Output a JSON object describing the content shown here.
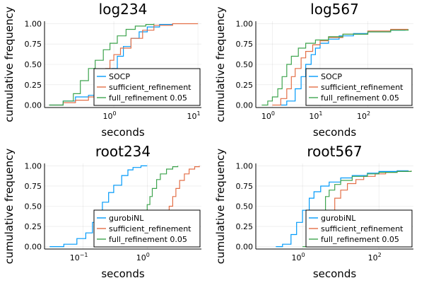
{
  "chart_data": [
    {
      "type": "line",
      "title": "log234",
      "xlabel": "seconds",
      "ylabel": "cumulative frequency",
      "xscale": "log",
      "xlim": [
        0.15,
        11
      ],
      "ylim": [
        -0.03,
        1.03
      ],
      "xticks": [
        {
          "base": "10",
          "exp": "0",
          "value": 1
        },
        {
          "base": "10",
          "exp": "1",
          "value": 10
        }
      ],
      "yticks": [
        "0.00",
        "0.25",
        "0.50",
        "0.75",
        "1.00"
      ],
      "grid": true,
      "legend_position": "bottom-right",
      "series": [
        {
          "name": "SOCP",
          "color": "#009AFA",
          "x": [
            0.17,
            0.25,
            0.35,
            0.5,
            0.65,
            0.8,
            0.95,
            1.1,
            1.3,
            1.6,
            2.0,
            2.5,
            3.5,
            5.0
          ],
          "y": [
            0.0,
            0.05,
            0.1,
            0.12,
            0.17,
            0.3,
            0.45,
            0.6,
            0.72,
            0.82,
            0.9,
            0.96,
            0.99,
            1.0
          ]
        },
        {
          "name": "sufficient_refinement",
          "color": "#E36F47",
          "x": [
            0.17,
            0.25,
            0.35,
            0.5,
            0.6,
            0.7,
            0.8,
            0.9,
            1.0,
            1.2,
            1.6,
            2.2,
            3.0,
            5.0,
            10.0
          ],
          "y": [
            0.0,
            0.03,
            0.06,
            0.1,
            0.2,
            0.35,
            0.45,
            0.55,
            0.62,
            0.7,
            0.82,
            0.92,
            0.98,
            1.0,
            1.0
          ]
        },
        {
          "name": "full_refinement 0.05",
          "color": "#3EA44E",
          "x": [
            0.17,
            0.25,
            0.33,
            0.4,
            0.5,
            0.6,
            0.75,
            0.9,
            1.1,
            1.4,
            1.8,
            2.4,
            3.0
          ],
          "y": [
            0.0,
            0.05,
            0.14,
            0.3,
            0.45,
            0.55,
            0.68,
            0.76,
            0.85,
            0.93,
            0.97,
            0.99,
            1.0
          ]
        }
      ]
    },
    {
      "type": "line",
      "title": "log567",
      "xlabel": "seconds",
      "ylabel": "cumulative frequency",
      "xscale": "log",
      "xlim": [
        0.45,
        900
      ],
      "ylim": [
        -0.03,
        1.03
      ],
      "xticks": [
        {
          "base": "10",
          "exp": "0",
          "value": 1
        },
        {
          "base": "10",
          "exp": "1",
          "value": 10
        },
        {
          "base": "10",
          "exp": "2",
          "value": 100
        }
      ],
      "yticks": [
        "0.00",
        "0.25",
        "0.50",
        "0.75",
        "1.00"
      ],
      "grid": true,
      "legend_position": "bottom-right",
      "series": [
        {
          "name": "SOCP",
          "color": "#009AFA",
          "x": [
            1.5,
            2.0,
            3.0,
            4.0,
            5.0,
            6.5,
            8.0,
            10,
            15,
            25,
            50,
            100,
            300,
            600
          ],
          "y": [
            0.0,
            0.05,
            0.2,
            0.35,
            0.5,
            0.62,
            0.7,
            0.76,
            0.81,
            0.85,
            0.88,
            0.9,
            0.92,
            0.93
          ]
        },
        {
          "name": "sufficient_refinement",
          "color": "#E36F47",
          "x": [
            1.0,
            1.5,
            2.0,
            2.5,
            3.0,
            4.0,
            5.0,
            7.0,
            10,
            15,
            30,
            100,
            300,
            700
          ],
          "y": [
            0.0,
            0.08,
            0.2,
            0.35,
            0.45,
            0.58,
            0.66,
            0.74,
            0.79,
            0.83,
            0.87,
            0.91,
            0.93,
            0.93
          ]
        },
        {
          "name": "full_refinement 0.05",
          "color": "#3EA44E",
          "x": [
            0.6,
            0.8,
            1.0,
            1.3,
            1.6,
            2.0,
            2.5,
            3.5,
            5.0,
            8.0,
            15,
            30,
            100,
            300,
            700
          ],
          "y": [
            0.0,
            0.05,
            0.1,
            0.2,
            0.35,
            0.5,
            0.6,
            0.7,
            0.76,
            0.8,
            0.84,
            0.87,
            0.9,
            0.92,
            0.93
          ]
        }
      ]
    },
    {
      "type": "line",
      "title": "root234",
      "xlabel": "seconds",
      "ylabel": "cumulative frequency",
      "xscale": "log",
      "xlim": [
        0.025,
        7
      ],
      "ylim": [
        -0.03,
        1.03
      ],
      "xticks": [
        {
          "base": "10",
          "exp": "−1",
          "value": 0.1
        },
        {
          "base": "10",
          "exp": "0",
          "value": 1
        }
      ],
      "yticks": [
        "0.00",
        "0.25",
        "0.50",
        "0.75",
        "1.00"
      ],
      "grid": true,
      "legend_position": "bottom-right",
      "series": [
        {
          "name": "gurobiNL",
          "color": "#009AFA",
          "x": [
            0.03,
            0.05,
            0.08,
            0.11,
            0.14,
            0.17,
            0.2,
            0.25,
            0.3,
            0.4,
            0.5,
            0.6,
            0.8,
            1.0
          ],
          "y": [
            0.0,
            0.03,
            0.1,
            0.17,
            0.3,
            0.42,
            0.55,
            0.67,
            0.76,
            0.88,
            0.95,
            0.98,
            1.0,
            1.0
          ]
        },
        {
          "name": "sufficient_refinement",
          "color": "#E36F47",
          "x": [
            1.2,
            1.5,
            1.8,
            2.0,
            2.2,
            2.5,
            2.8,
            3.2,
            3.8,
            4.5,
            5.5,
            6.5
          ],
          "y": [
            0.0,
            0.15,
            0.3,
            0.42,
            0.5,
            0.62,
            0.72,
            0.82,
            0.9,
            0.96,
            0.99,
            1.0
          ]
        },
        {
          "name": "full_refinement 0.05",
          "color": "#3EA44E",
          "x": [
            0.6,
            0.7,
            0.8,
            0.9,
            1.0,
            1.1,
            1.2,
            1.4,
            1.6,
            2.0,
            2.5,
            3.0
          ],
          "y": [
            0.0,
            0.12,
            0.25,
            0.4,
            0.52,
            0.62,
            0.72,
            0.83,
            0.9,
            0.96,
            0.99,
            1.0
          ]
        }
      ]
    },
    {
      "type": "line",
      "title": "root567",
      "xlabel": "seconds",
      "ylabel": "cumulative frequency",
      "xscale": "log",
      "xlim": [
        0.06,
        800
      ],
      "ylim": [
        -0.03,
        1.03
      ],
      "xticks": [
        {
          "base": "10",
          "exp": "0",
          "value": 1
        },
        {
          "base": "10",
          "exp": "2",
          "value": 100
        }
      ],
      "yticks": [
        "0.00",
        "0.25",
        "0.50",
        "0.75",
        "1.00"
      ],
      "grid": true,
      "legend_position": "bottom-right",
      "series": [
        {
          "name": "gurobiNL",
          "color": "#009AFA",
          "x": [
            0.2,
            0.3,
            0.5,
            0.7,
            1.0,
            1.5,
            2.0,
            3.0,
            5.0,
            10,
            20,
            50,
            100,
            300,
            600
          ],
          "y": [
            0.0,
            0.03,
            0.15,
            0.3,
            0.45,
            0.6,
            0.68,
            0.75,
            0.8,
            0.85,
            0.88,
            0.91,
            0.93,
            0.94,
            0.94
          ]
        },
        {
          "name": "sufficient_refinement",
          "color": "#E36F47",
          "x": [
            2.0,
            3.0,
            4.0,
            5.0,
            7.0,
            10,
            15,
            25,
            40,
            80,
            150,
            300,
            700
          ],
          "y": [
            0.0,
            0.1,
            0.3,
            0.45,
            0.6,
            0.7,
            0.78,
            0.83,
            0.87,
            0.9,
            0.92,
            0.93,
            0.94
          ]
        },
        {
          "name": "full_refinement 0.05",
          "color": "#3EA44E",
          "x": [
            1.0,
            1.5,
            2.0,
            3.0,
            4.0,
            5.0,
            7.0,
            10,
            20,
            50,
            100,
            300,
            700
          ],
          "y": [
            0.0,
            0.08,
            0.2,
            0.45,
            0.62,
            0.7,
            0.77,
            0.82,
            0.87,
            0.9,
            0.92,
            0.93,
            0.94
          ]
        }
      ]
    }
  ]
}
